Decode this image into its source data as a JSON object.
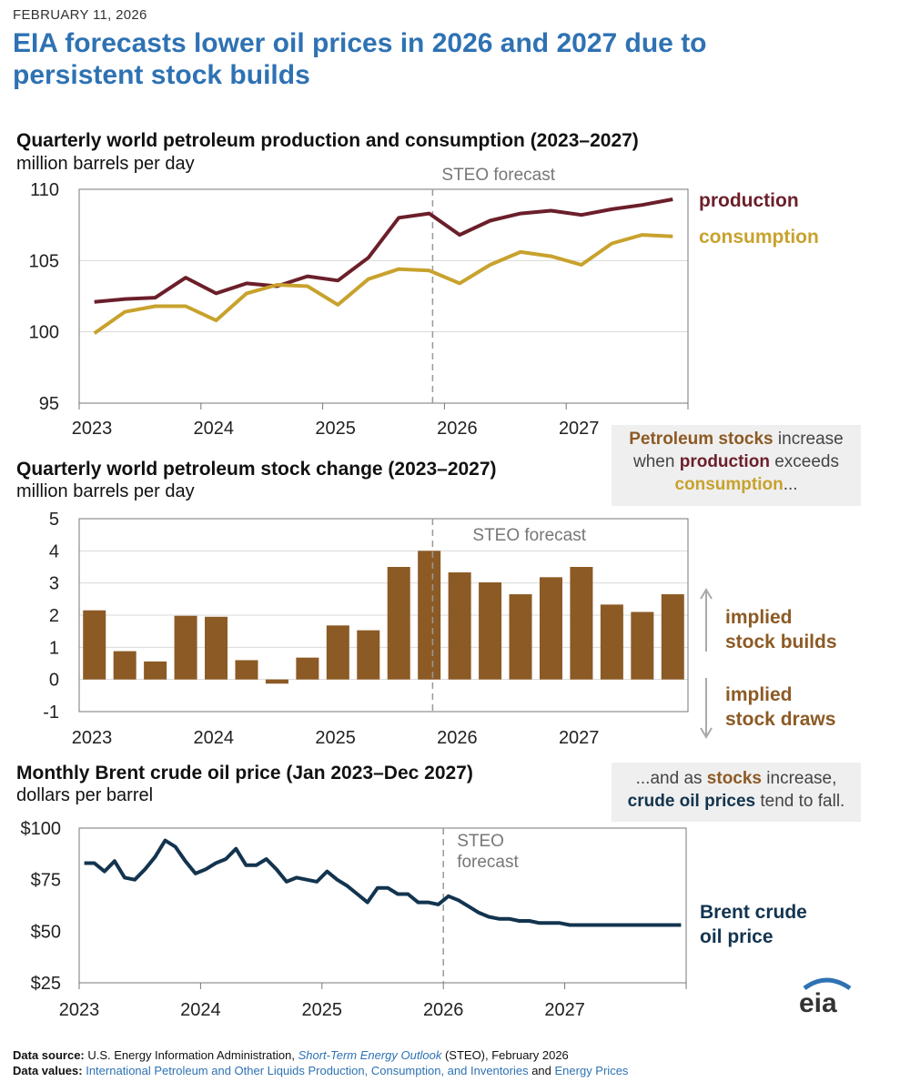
{
  "header": {
    "date": "FEBRUARY 11, 2026",
    "title": "EIA forecasts lower oil prices in 2026 and 2027 due to persistent stock builds"
  },
  "chart_data": [
    {
      "type": "line",
      "title": "Quarterly world petroleum production and consumption (2023–2027)",
      "ylabel": "million barrels per day",
      "ylim": [
        95,
        110
      ],
      "yticks": [
        "110",
        "105",
        "100",
        "95"
      ],
      "xtick_labels": [
        "2023",
        "2024",
        "2025",
        "2026",
        "2027"
      ],
      "x": [
        "2023Q1",
        "2023Q2",
        "2023Q3",
        "2023Q4",
        "2024Q1",
        "2024Q2",
        "2024Q3",
        "2024Q4",
        "2025Q1",
        "2025Q2",
        "2025Q3",
        "2025Q4",
        "2026Q1",
        "2026Q2",
        "2026Q3",
        "2026Q4",
        "2027Q1",
        "2027Q2",
        "2027Q3",
        "2027Q4"
      ],
      "forecast_label": "STEO forecast",
      "series": [
        {
          "name": "production",
          "color": "#6b1f2a",
          "values": [
            102.1,
            102.3,
            102.4,
            103.8,
            102.7,
            103.4,
            103.2,
            103.9,
            103.6,
            105.2,
            108.0,
            108.3,
            106.8,
            107.8,
            108.3,
            108.5,
            108.2,
            108.6,
            108.9,
            109.3
          ]
        },
        {
          "name": "consumption",
          "color": "#c8a22d",
          "values": [
            99.9,
            101.4,
            101.8,
            101.8,
            100.8,
            102.7,
            103.3,
            103.2,
            101.9,
            103.7,
            104.4,
            104.3,
            103.4,
            104.7,
            105.6,
            105.3,
            104.7,
            106.2,
            106.8,
            106.7
          ]
        }
      ],
      "grid": true
    },
    {
      "type": "bar",
      "title": "Quarterly world petroleum stock change (2023–2027)",
      "ylabel": "million barrels per day",
      "ylim": [
        -1,
        5
      ],
      "yticks": [
        "5",
        "4",
        "3",
        "2",
        "1",
        "0",
        "-1"
      ],
      "xtick_labels": [
        "2023",
        "2024",
        "2025",
        "2026",
        "2027"
      ],
      "forecast_label": "STEO forecast",
      "categories": [
        "2023Q1",
        "2023Q2",
        "2023Q3",
        "2023Q4",
        "2024Q1",
        "2024Q2",
        "2024Q3",
        "2024Q4",
        "2025Q1",
        "2025Q2",
        "2025Q3",
        "2025Q4",
        "2026Q1",
        "2026Q2",
        "2026Q3",
        "2026Q4",
        "2027Q1",
        "2027Q2",
        "2027Q3",
        "2027Q4"
      ],
      "values": [
        2.15,
        0.88,
        0.56,
        1.98,
        1.95,
        0.6,
        -0.13,
        0.68,
        1.68,
        1.53,
        3.5,
        4.0,
        3.33,
        3.02,
        2.65,
        3.18,
        3.5,
        2.33,
        2.1,
        2.65
      ],
      "color": "#8c5a24",
      "grid": true,
      "annotations": [
        "implied\nstock builds",
        "implied\nstock draws"
      ]
    },
    {
      "type": "line",
      "title": "Monthly Brent crude oil price (Jan 2023–Dec 2027)",
      "ylabel": "dollars per barrel",
      "ylim": [
        25,
        100
      ],
      "yticks": [
        "$100",
        "$75",
        "$50",
        "$25"
      ],
      "xtick_labels": [
        "2023",
        "2024",
        "2025",
        "2026",
        "2027"
      ],
      "forecast_label": "STEO forecast",
      "series": [
        {
          "name": "Brent crude oil price",
          "color": "#13344f",
          "values": [
            83,
            83,
            79,
            84,
            76,
            75,
            80,
            86,
            94,
            91,
            84,
            78,
            80,
            83,
            85,
            90,
            82,
            82,
            85,
            80,
            74,
            76,
            75,
            74,
            79,
            75,
            72,
            68,
            64,
            71,
            71,
            68,
            68,
            64,
            64,
            63,
            67,
            65,
            62,
            59,
            57,
            56,
            56,
            55,
            55,
            54,
            54,
            54,
            53,
            53,
            53,
            53,
            53,
            53,
            53,
            53,
            53,
            53,
            53,
            53
          ]
        }
      ],
      "grid": false
    }
  ],
  "callouts": {
    "c1_line1_bold": "Petroleum stocks",
    "c1_line1_rest": " increase",
    "c1_line2_pre": "when ",
    "c1_line2_bold": "production",
    "c1_line2_rest": " exceeds",
    "c1_line3_bold": "consumption",
    "c1_line3_rest": "...",
    "c2_line1_pre": "...and as ",
    "c2_line1_bold": "stocks",
    "c2_line1_rest": " increase,",
    "c2_line2_bold": "crude oil prices",
    "c2_line2_rest": " tend to fall."
  },
  "labels": {
    "production": "production",
    "consumption": "consumption",
    "builds_l1": "implied",
    "builds_l2": "stock builds",
    "draws_l1": "implied",
    "draws_l2": "stock draws",
    "brent_l1": "Brent crude",
    "brent_l2": "oil price",
    "forecast_l1": "STEO",
    "forecast_l2": "forecast"
  },
  "footer": {
    "source_label": "Data source:",
    "source_text_1": " U.S. Energy Information Administration, ",
    "source_link": "Short-Term Energy Outlook",
    "source_text_2": " (STEO), February 2026",
    "values_label": "Data values:",
    "values_link_1": "International Petroleum and Other Liquids Production, Consumption, and Inventories",
    "values_and": " and ",
    "values_link_2": "Energy Prices"
  },
  "logo": {
    "text": "eia",
    "color_arc": "#2e72b3"
  }
}
